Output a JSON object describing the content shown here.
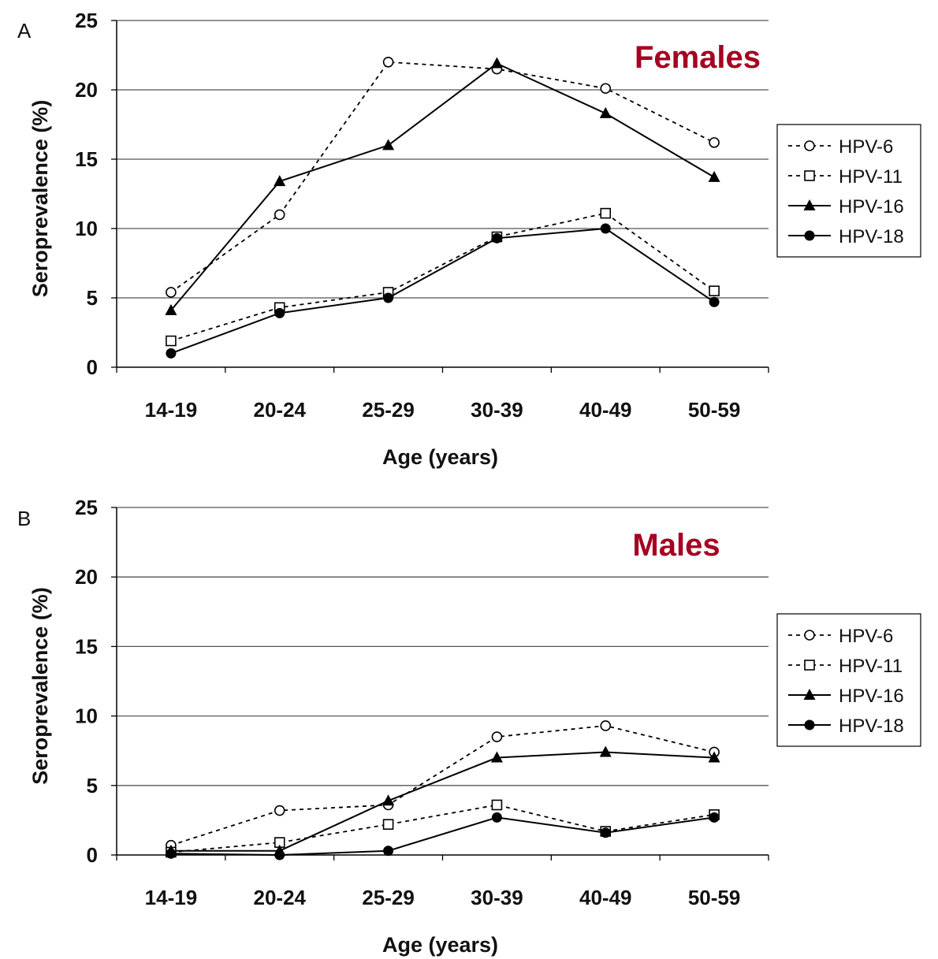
{
  "colors": {
    "annotation": "#a50021",
    "line": "#000000",
    "grid": "#555555"
  },
  "chart_data": [
    {
      "type": "line",
      "panel_label": "A",
      "annotation": "Females",
      "categories": [
        "14-19",
        "20-24",
        "25-29",
        "30-39",
        "40-49",
        "50-59"
      ],
      "xlabel": "Age (years)",
      "ylabel": "Seroprevalence (%)",
      "ylim": [
        0,
        25
      ],
      "yticks": [
        "0",
        "5",
        "10",
        "15",
        "20",
        "25"
      ],
      "grid": true,
      "legend_position": "right",
      "series": [
        {
          "name": "HPV-6",
          "marker": "open-circle",
          "dash": true,
          "values": [
            5.4,
            11.0,
            22.0,
            21.5,
            20.1,
            16.2
          ]
        },
        {
          "name": "HPV-11",
          "marker": "open-square",
          "dash": true,
          "values": [
            1.9,
            4.3,
            5.4,
            9.4,
            11.1,
            5.5
          ]
        },
        {
          "name": "HPV-16",
          "marker": "triangle",
          "dash": false,
          "values": [
            4.1,
            13.4,
            16.0,
            21.9,
            18.3,
            13.7
          ]
        },
        {
          "name": "HPV-18",
          "marker": "filled-circle",
          "dash": false,
          "values": [
            1.0,
            3.9,
            5.0,
            9.3,
            10.0,
            4.7
          ]
        }
      ]
    },
    {
      "type": "line",
      "panel_label": "B",
      "annotation": "Males",
      "categories": [
        "14-19",
        "20-24",
        "25-29",
        "30-39",
        "40-49",
        "50-59"
      ],
      "xlabel": "Age (years)",
      "ylabel": "Seroprevalence (%)",
      "ylim": [
        0,
        25
      ],
      "yticks": [
        "0",
        "5",
        "10",
        "15",
        "20",
        "25"
      ],
      "grid": true,
      "legend_position": "right",
      "series": [
        {
          "name": "HPV-6",
          "marker": "open-circle",
          "dash": true,
          "values": [
            0.7,
            3.2,
            3.6,
            8.5,
            9.3,
            7.4
          ]
        },
        {
          "name": "HPV-11",
          "marker": "open-square",
          "dash": true,
          "values": [
            0.2,
            0.9,
            2.2,
            3.6,
            1.7,
            2.9
          ]
        },
        {
          "name": "HPV-16",
          "marker": "triangle",
          "dash": false,
          "values": [
            0.3,
            0.3,
            3.9,
            7.0,
            7.4,
            7.0
          ]
        },
        {
          "name": "HPV-18",
          "marker": "filled-circle",
          "dash": false,
          "values": [
            0.1,
            0.0,
            0.3,
            2.7,
            1.6,
            2.7
          ]
        }
      ]
    }
  ]
}
